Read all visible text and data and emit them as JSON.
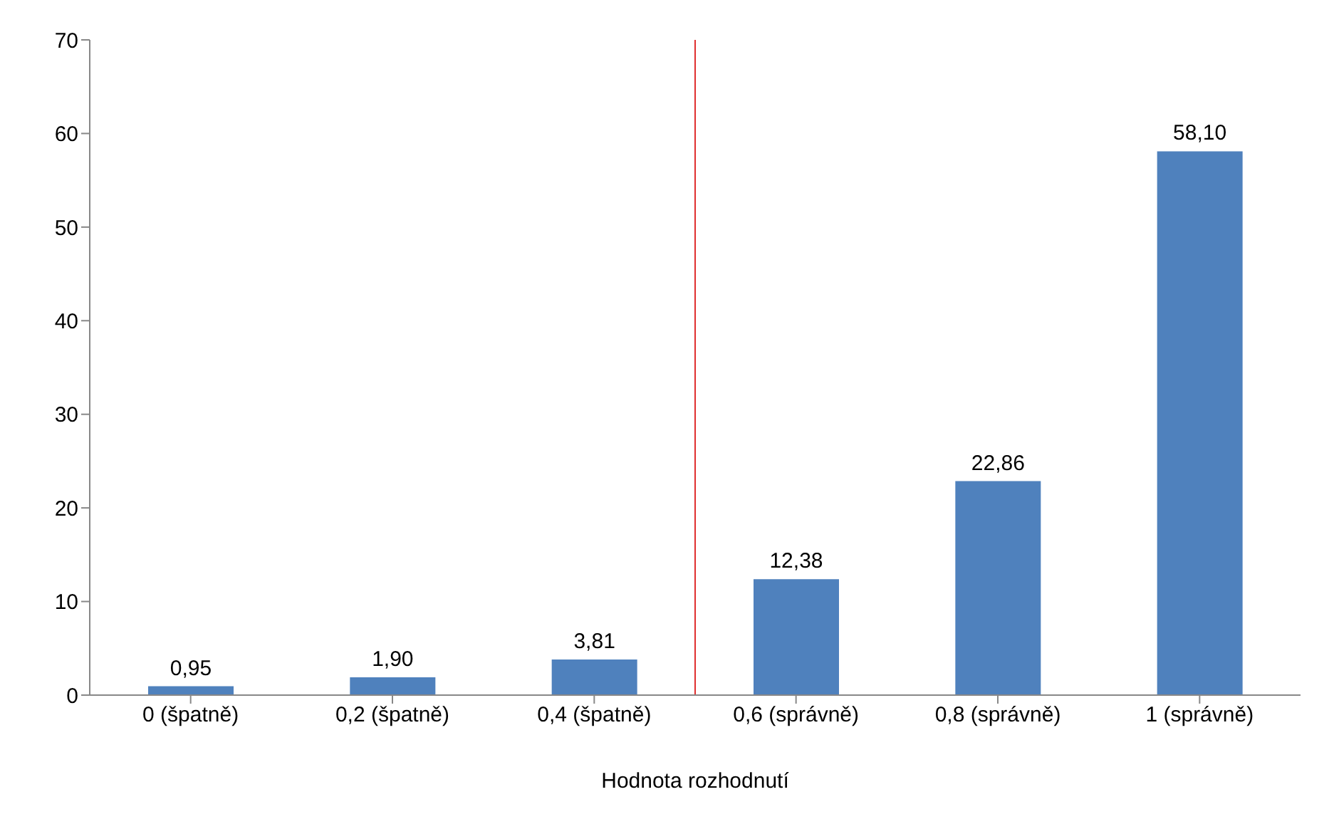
{
  "chart_data": {
    "type": "bar",
    "xlabel": "Hodnota rozhodnutí",
    "x": [
      0,
      0.2,
      0.4,
      0.6,
      0.8,
      1
    ],
    "xlim": [
      -0.1,
      1.1
    ],
    "xticks": [
      {
        "value": 0,
        "label": "0 (špatně)"
      },
      {
        "value": 0.2,
        "label": "0,2 (špatně)"
      },
      {
        "value": 0.4,
        "label": "0,4 (špatně)"
      },
      {
        "value": 0.6,
        "label": "0,6 (správně)"
      },
      {
        "value": 0.8,
        "label": "0,8 (správně)"
      },
      {
        "value": 1,
        "label": "1 (správně)"
      }
    ],
    "values": [
      0.95,
      1.9,
      3.81,
      12.38,
      22.86,
      58.1
    ],
    "value_labels": [
      "0,95",
      "1,90",
      "3,81",
      "12,38",
      "22,86",
      "58,10"
    ],
    "color": "#4f81bd",
    "ylim": [
      0,
      70
    ],
    "yticks": [
      0,
      10,
      20,
      30,
      40,
      50,
      60,
      70
    ],
    "grid": false,
    "legend": false,
    "ref_lines": [
      {
        "axis": "x",
        "value": 0.5,
        "color": "#e03030"
      }
    ]
  }
}
